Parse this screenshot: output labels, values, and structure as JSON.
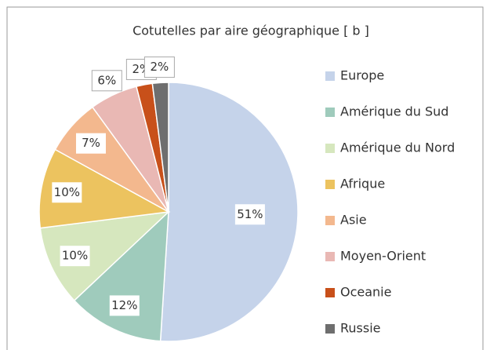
{
  "chart_data": {
    "type": "pie",
    "title": "Cotutelles par aire géographique [ b ]",
    "categories": [
      "Europe",
      "Amérique du Sud",
      "Amérique du Nord",
      "Afrique",
      "Asie",
      "Moyen-Orient",
      "Oceanie",
      "Russie"
    ],
    "values": [
      51,
      12,
      10,
      10,
      7,
      6,
      2,
      2
    ],
    "value_labels": [
      "51%",
      "12%",
      "10%",
      "10%",
      "7%",
      "6%",
      "2%",
      "2%"
    ],
    "colors": [
      "#c5d3ea",
      "#9fcbbc",
      "#d6e7be",
      "#ecc35f",
      "#f3b88e",
      "#e9b8b4",
      "#c8501a",
      "#6e6e6e"
    ],
    "legend": "right"
  }
}
